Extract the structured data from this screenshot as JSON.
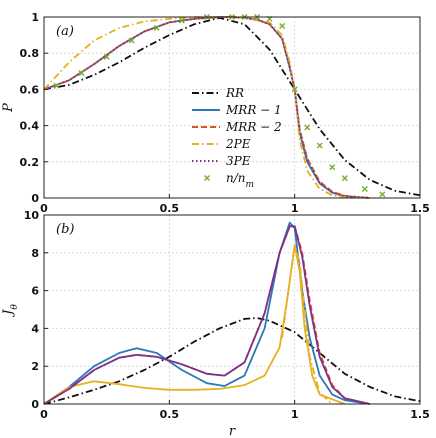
{
  "chart_data": [
    {
      "panel": "(a)",
      "type": "line",
      "xlabel": "",
      "ylabel": "P",
      "xlim": [
        0,
        1.5
      ],
      "ylim": [
        0,
        1
      ],
      "xticks": [
        "0",
        "0.5",
        "1",
        "1.5"
      ],
      "yticks": [
        "0",
        "0.2",
        "0.4",
        "0.6",
        "0.8",
        "1"
      ],
      "grid": true,
      "legend_position": "center",
      "series": [
        {
          "name": "RR",
          "color": "#111111",
          "dash": "dashdot",
          "x": [
            0,
            0.1,
            0.2,
            0.3,
            0.4,
            0.5,
            0.6,
            0.7,
            0.8,
            0.9,
            1.0,
            1.1,
            1.2,
            1.3,
            1.4,
            1.5
          ],
          "y": [
            0.6,
            0.625,
            0.68,
            0.75,
            0.83,
            0.9,
            0.96,
            0.995,
            0.96,
            0.82,
            0.6,
            0.38,
            0.21,
            0.1,
            0.04,
            0.015
          ]
        },
        {
          "name": "MRR-1",
          "color": "#2a78b8",
          "dash": "solid",
          "x": [
            0,
            0.1,
            0.2,
            0.3,
            0.4,
            0.5,
            0.6,
            0.7,
            0.75,
            0.8,
            0.85,
            0.9,
            0.95,
            0.98,
            1.0,
            1.02,
            1.05,
            1.1,
            1.15,
            1.2,
            1.3
          ],
          "y": [
            0.6,
            0.65,
            0.74,
            0.84,
            0.92,
            0.97,
            0.99,
            1.0,
            1.0,
            0.995,
            0.985,
            0.96,
            0.88,
            0.72,
            0.6,
            0.36,
            0.2,
            0.08,
            0.03,
            0.01,
            0.0
          ]
        },
        {
          "name": "MRR-2",
          "color": "#d9541e",
          "dash": "dash",
          "x": [
            0,
            0.1,
            0.2,
            0.3,
            0.4,
            0.5,
            0.6,
            0.7,
            0.75,
            0.8,
            0.85,
            0.9,
            0.95,
            0.98,
            1.0,
            1.02,
            1.05,
            1.1,
            1.15,
            1.2,
            1.3
          ],
          "y": [
            0.6,
            0.65,
            0.74,
            0.84,
            0.92,
            0.97,
            0.99,
            1.0,
            1.0,
            0.995,
            0.985,
            0.96,
            0.88,
            0.73,
            0.6,
            0.38,
            0.22,
            0.09,
            0.035,
            0.012,
            0.0
          ]
        },
        {
          "name": "2PE",
          "color": "#e8b020",
          "dash": "dashdot",
          "x": [
            0,
            0.1,
            0.2,
            0.3,
            0.4,
            0.5,
            0.6,
            0.7,
            0.8,
            0.9,
            0.95,
            0.98,
            1.0,
            1.02,
            1.05,
            1.1,
            1.15,
            1.2,
            1.3
          ],
          "y": [
            0.6,
            0.75,
            0.87,
            0.94,
            0.975,
            0.99,
            1.0,
            1.0,
            0.995,
            0.97,
            0.9,
            0.75,
            0.6,
            0.32,
            0.15,
            0.05,
            0.015,
            0.005,
            0.0
          ]
        },
        {
          "name": "3PE",
          "color": "#7e2f8e",
          "dash": "dot",
          "x": [
            0,
            0.1,
            0.2,
            0.3,
            0.4,
            0.5,
            0.6,
            0.7,
            0.75,
            0.8,
            0.85,
            0.9,
            0.95,
            0.98,
            1.0,
            1.02,
            1.05,
            1.1,
            1.15,
            1.2,
            1.3
          ],
          "y": [
            0.6,
            0.65,
            0.74,
            0.84,
            0.92,
            0.97,
            0.99,
            1.0,
            1.0,
            0.995,
            0.985,
            0.96,
            0.88,
            0.72,
            0.6,
            0.37,
            0.21,
            0.085,
            0.03,
            0.01,
            0.0
          ]
        },
        {
          "name": "n/n_m",
          "color": "#77ac30",
          "marker": "x",
          "x": [
            0.05,
            0.15,
            0.25,
            0.35,
            0.45,
            0.55,
            0.65,
            0.75,
            0.8,
            0.85,
            0.9,
            0.95,
            1.0,
            1.05,
            1.1,
            1.15,
            1.2,
            1.28,
            1.35
          ],
          "y": [
            0.62,
            0.69,
            0.78,
            0.87,
            0.94,
            0.98,
            1.0,
            1.0,
            1.0,
            1.0,
            0.99,
            0.95,
            0.6,
            0.39,
            0.29,
            0.17,
            0.11,
            0.05,
            0.02
          ]
        }
      ]
    },
    {
      "panel": "(b)",
      "type": "line",
      "xlabel": "r",
      "ylabel": "J_θ",
      "xlim": [
        0,
        1.5
      ],
      "ylim": [
        0,
        10
      ],
      "xticks": [
        "0",
        "0.5",
        "1",
        "1.5"
      ],
      "yticks": [
        "0",
        "2",
        "4",
        "6",
        "8",
        "10"
      ],
      "grid": true,
      "series": [
        {
          "name": "RR",
          "color": "#111111",
          "dash": "dashdot",
          "x": [
            0,
            0.1,
            0.2,
            0.3,
            0.4,
            0.5,
            0.6,
            0.7,
            0.8,
            0.85,
            0.9,
            1.0,
            1.1,
            1.2,
            1.3,
            1.4,
            1.5
          ],
          "y": [
            0,
            0.35,
            0.75,
            1.2,
            1.8,
            2.5,
            3.3,
            4.0,
            4.5,
            4.55,
            4.4,
            3.8,
            2.7,
            1.6,
            0.9,
            0.4,
            0.15
          ]
        },
        {
          "name": "MRR-1",
          "color": "#2a78b8",
          "dash": "solid",
          "x": [
            0,
            0.1,
            0.2,
            0.3,
            0.37,
            0.45,
            0.55,
            0.65,
            0.72,
            0.8,
            0.88,
            0.94,
            0.98,
            1.0,
            1.03,
            1.06,
            1.1,
            1.15,
            1.2,
            1.3
          ],
          "y": [
            0,
            0.9,
            2.0,
            2.7,
            2.95,
            2.7,
            1.8,
            1.1,
            0.95,
            1.5,
            4.0,
            8.0,
            9.6,
            9.3,
            6.0,
            3.5,
            1.5,
            0.5,
            0.2,
            0.0
          ]
        },
        {
          "name": "MRR-2",
          "color": "#d9541e",
          "dash": "dash",
          "x": [
            0,
            0.1,
            0.2,
            0.3,
            0.37,
            0.45,
            0.55,
            0.65,
            0.72,
            0.8,
            0.88,
            0.94,
            0.98,
            1.0,
            1.03,
            1.06,
            1.1,
            1.15,
            1.2,
            1.3
          ],
          "y": [
            0,
            0.8,
            1.8,
            2.45,
            2.6,
            2.5,
            2.1,
            1.6,
            1.5,
            2.2,
            4.8,
            8.0,
            9.4,
            9.4,
            8.0,
            5.5,
            2.7,
            1.0,
            0.3,
            0.0
          ]
        },
        {
          "name": "2PE",
          "color": "#e8b020",
          "dash": "solid",
          "x": [
            0,
            0.1,
            0.2,
            0.3,
            0.4,
            0.5,
            0.6,
            0.7,
            0.8,
            0.88,
            0.94,
            0.97,
            1.0,
            1.02,
            1.04,
            1.07,
            1.1,
            1.2
          ],
          "y": [
            0,
            0.9,
            1.2,
            1.05,
            0.85,
            0.75,
            0.75,
            0.8,
            1.0,
            1.5,
            3.0,
            5.5,
            8.4,
            7.0,
            4.0,
            1.5,
            0.5,
            0.0
          ]
        },
        {
          "name": "2PE dashed",
          "color": "#e8b020",
          "dash": "dashdot",
          "x": [
            0.95,
            0.98,
            1.0,
            1.02,
            1.04,
            1.06,
            1.1,
            1.15
          ],
          "y": [
            3.5,
            6.5,
            8.4,
            7.5,
            5.0,
            2.5,
            0.6,
            0.0
          ]
        },
        {
          "name": "3PE",
          "color": "#7e2f8e",
          "dash": "solid",
          "x": [
            0,
            0.1,
            0.2,
            0.3,
            0.37,
            0.45,
            0.55,
            0.65,
            0.72,
            0.8,
            0.88,
            0.94,
            0.98,
            1.0,
            1.03,
            1.06,
            1.1,
            1.15,
            1.2,
            1.3
          ],
          "y": [
            0,
            0.8,
            1.8,
            2.45,
            2.6,
            2.5,
            2.1,
            1.6,
            1.5,
            2.2,
            4.8,
            8.0,
            9.4,
            9.4,
            7.8,
            5.2,
            2.5,
            0.9,
            0.3,
            0.0
          ]
        }
      ]
    }
  ],
  "legend": [
    {
      "label": "RR",
      "color": "#111111",
      "style": "dashdot"
    },
    {
      "label": "MRR − 1",
      "color": "#2a78b8",
      "style": "solid"
    },
    {
      "label": "MRR − 2",
      "color": "#d9541e",
      "style": "dash"
    },
    {
      "label": "2PE",
      "color": "#e8b020",
      "style": "dashdot"
    },
    {
      "label": "3PE",
      "color": "#7e2f8e",
      "style": "dot"
    },
    {
      "label": "n/n_m",
      "color": "#77ac30",
      "style": "marker"
    }
  ],
  "labels": {
    "panel_a": "(a)",
    "panel_b": "(b)",
    "ylabel_a": "P",
    "ylabel_b": "J_θ",
    "xlabel_b": "r"
  }
}
